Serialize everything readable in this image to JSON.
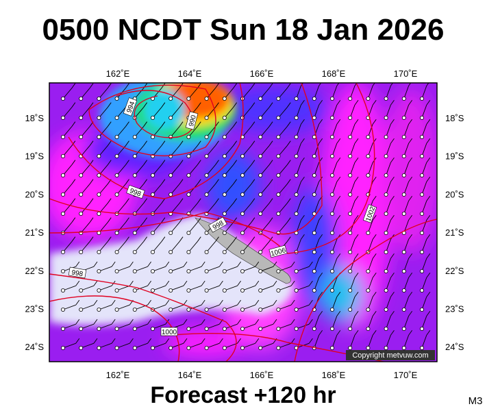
{
  "title": "0500 NCDT Sun 18 Jan 2026",
  "longitudes": [
    "162˚E",
    "164˚E",
    "166˚E",
    "168˚E",
    "170˚E"
  ],
  "latitudes": [
    "18˚S",
    "19˚S",
    "20˚S",
    "21˚S",
    "22˚S",
    "23˚S",
    "24˚S"
  ],
  "isobar_labels": [
    "994",
    "990",
    "998",
    "998",
    "1002",
    "1006",
    "998",
    "1000"
  ],
  "copyright": "Copyright metvuw.com",
  "footer": "Forecast +120 hr",
  "code": "M3"
}
